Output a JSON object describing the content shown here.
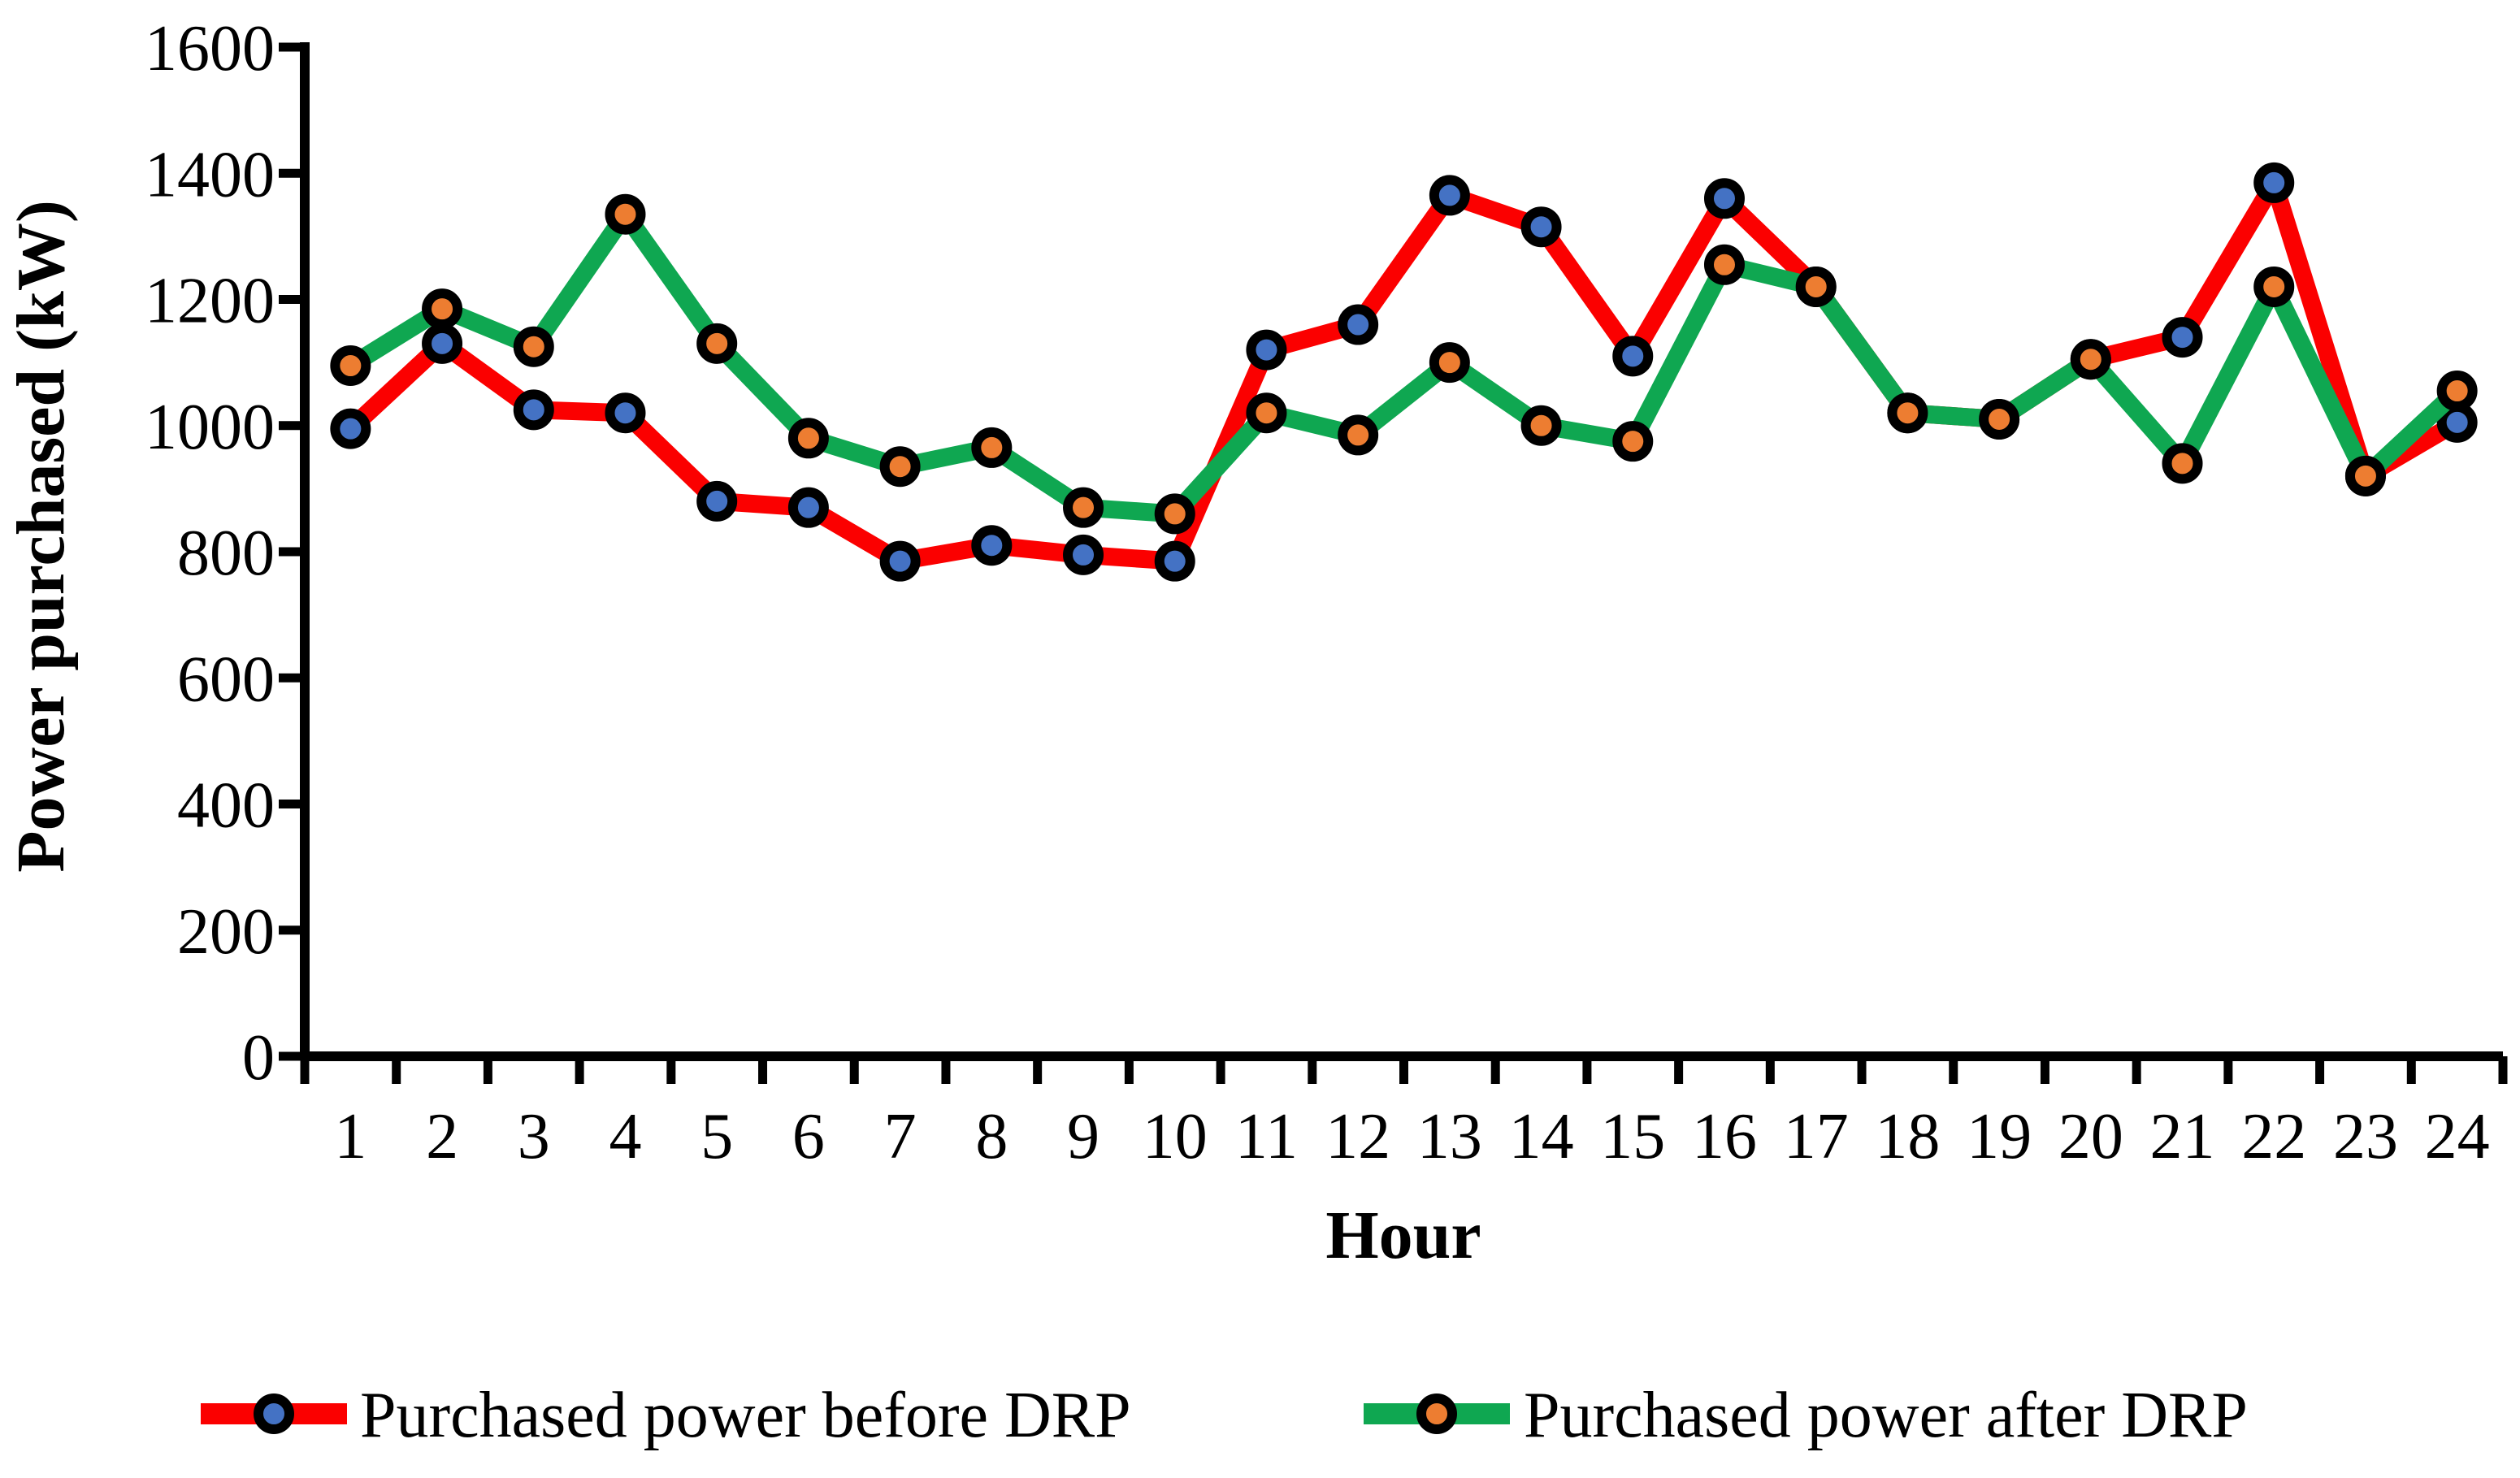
{
  "figure": {
    "background": "#ffffff",
    "axis_color": "#000000"
  },
  "chart_data": {
    "type": "line",
    "title": "",
    "xlabel": "Hour",
    "ylabel": "Power purchased (kW)",
    "x": [
      1,
      2,
      3,
      4,
      5,
      6,
      7,
      8,
      9,
      10,
      11,
      12,
      13,
      14,
      15,
      16,
      17,
      18,
      19,
      20,
      21,
      22,
      23,
      24
    ],
    "x_tick_labels": [
      "1",
      "2",
      "3",
      "4",
      "5",
      "6",
      "7",
      "8",
      "9",
      "10",
      "11",
      "12",
      "13",
      "14",
      "15",
      "16",
      "17",
      "18",
      "19",
      "20",
      "21",
      "22",
      "23",
      "24"
    ],
    "ylim": [
      0,
      1600
    ],
    "y_ticks": [
      0,
      200,
      400,
      600,
      800,
      1000,
      1200,
      1400,
      1600
    ],
    "y_tick_labels": [
      "0",
      "200",
      "400",
      "600",
      "800",
      "1000",
      "1200",
      "1400",
      "1600"
    ],
    "grid": false,
    "legend_position": "bottom",
    "series": [
      {
        "name": "Purchased power before DRP",
        "line_color": "#FB0000",
        "marker_fill": "#4472C4",
        "marker_outline": "#000000",
        "values": [
          995,
          1130,
          1025,
          1020,
          880,
          870,
          785,
          810,
          795,
          785,
          1120,
          1160,
          1365,
          1315,
          1110,
          1360,
          1220,
          1020,
          1010,
          1105,
          1140,
          1385,
          920,
          1005
        ]
      },
      {
        "name": "Purchased power after DRP",
        "line_color": "#0FA751",
        "marker_fill": "#ED7D31",
        "marker_outline": "#000000",
        "values": [
          1095,
          1185,
          1125,
          1335,
          1130,
          980,
          935,
          965,
          870,
          860,
          1020,
          985,
          1100,
          1000,
          975,
          1255,
          1220,
          1020,
          1010,
          1105,
          940,
          1220,
          920,
          1055
        ]
      }
    ]
  },
  "legend": {
    "items": [
      {
        "label": "Purchased power before DRP"
      },
      {
        "label": "Purchased power after DRP"
      }
    ]
  }
}
